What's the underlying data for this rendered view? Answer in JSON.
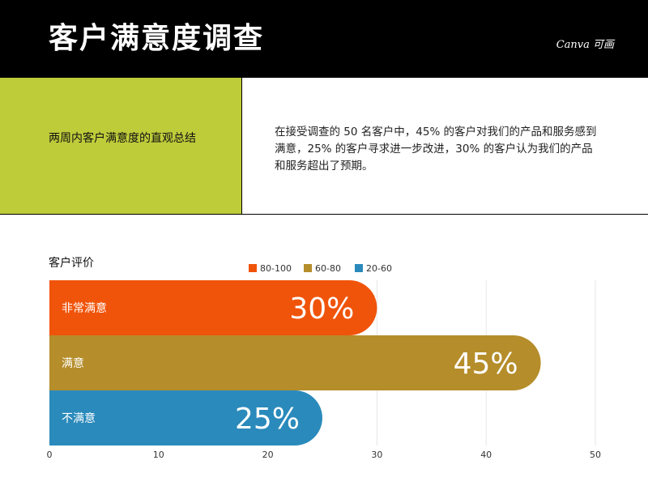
{
  "header": {
    "title": "客户满意度调查",
    "brand": "Canva 可画"
  },
  "summary": {
    "label": "两周内客户满意度的直观总结",
    "text": "在接受调查的 50 名客户中，45% 的客户对我们的产品和服务感到满意，25% 的客户寻求进一步改进，30% 的客户认为我们的产品和服务超出了预期。"
  },
  "colors": {
    "header_bg": "#000000",
    "accent_panel": "#bfcc3a",
    "series_80_100": "#f0540a",
    "series_60_80": "#b58d2a",
    "series_20_60": "#2a8abb"
  },
  "chart_data": {
    "type": "bar",
    "orientation": "horizontal",
    "title": "客户评价",
    "categories": [
      "非常满意",
      "满意",
      "不满意"
    ],
    "values": [
      30,
      45,
      25
    ],
    "value_labels": [
      "30%",
      "45%",
      "25%"
    ],
    "legend": [
      "80-100",
      "60-80",
      "20-60"
    ],
    "bar_colors": [
      "#f0540a",
      "#b58d2a",
      "#2a8abb"
    ],
    "xlim": [
      0,
      50
    ],
    "xticks": [
      0,
      10,
      20,
      30,
      40,
      50
    ],
    "grid": true,
    "legend_position": "top"
  }
}
